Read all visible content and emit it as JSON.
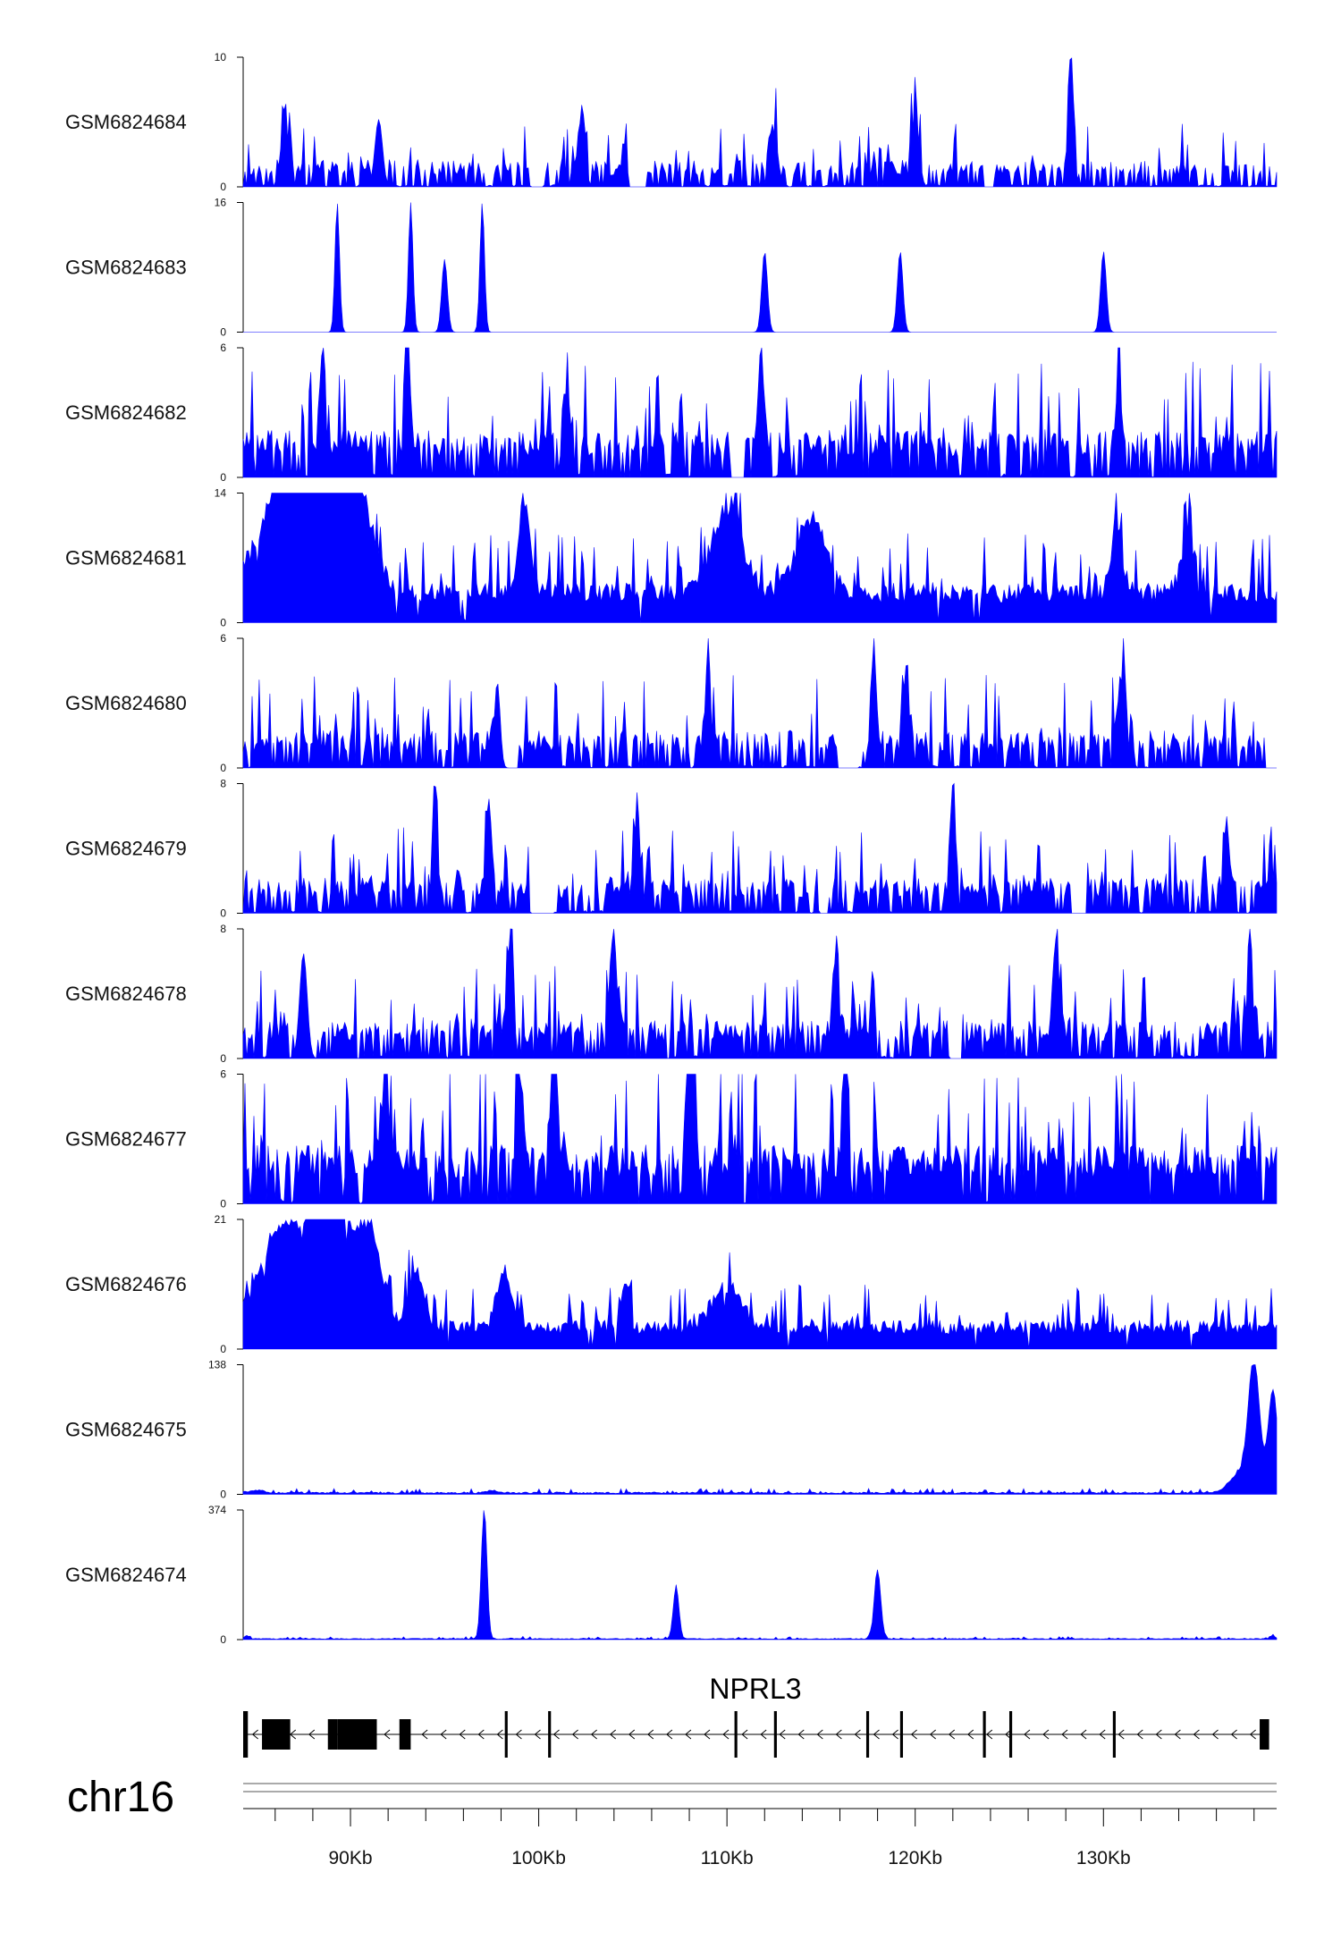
{
  "chart_data": {
    "type": "area",
    "chromosome": "chr16",
    "x_range_kb": [
      84.3,
      139.2
    ],
    "x_ticks": [
      {
        "value": 90,
        "label": "90Kb"
      },
      {
        "value": 100,
        "label": "100Kb"
      },
      {
        "value": 110,
        "label": "110Kb"
      },
      {
        "value": 120,
        "label": "120Kb"
      },
      {
        "value": 130,
        "label": "130Kb"
      }
    ],
    "color": "#0000ff",
    "tracks": [
      {
        "name": "GSM6824684",
        "ymax": 10,
        "ymin": 0,
        "baseline": 1.2,
        "amp": 0.5,
        "sparsity": 0.35,
        "gap": 0.22,
        "peaks": [
          [
            102.3,
            6.3,
            0.15
          ],
          [
            112.5,
            4.0,
            0.2
          ],
          [
            120.0,
            5.0,
            0.2
          ],
          [
            128.3,
            10.0,
            0.12
          ],
          [
            86.5,
            5.0,
            0.2
          ],
          [
            91.5,
            5.2,
            0.2
          ]
        ]
      },
      {
        "name": "GSM6824683",
        "ymax": 16,
        "ymin": 0,
        "baseline": 0,
        "amp": 0.9,
        "sparsity": 0.6,
        "gap": 0.55,
        "peaks": [
          [
            89.3,
            16.0,
            0.12
          ],
          [
            93.2,
            16.0,
            0.12
          ],
          [
            97.0,
            16.0,
            0.12
          ],
          [
            95.0,
            9.0,
            0.15
          ],
          [
            130.0,
            10.0,
            0.15
          ],
          [
            119.2,
            10.0,
            0.15
          ],
          [
            112.0,
            10.0,
            0.15
          ]
        ]
      },
      {
        "name": "GSM6824682",
        "ymax": 6,
        "ymin": 0,
        "baseline": 1.2,
        "amp": 0.55,
        "sparsity": 0.2,
        "gap": 0.05,
        "peaks": [
          [
            93.0,
            6.0,
            0.15
          ],
          [
            111.8,
            4.5,
            0.15
          ],
          [
            101.5,
            4.0,
            0.2
          ],
          [
            130.8,
            5.5,
            0.12
          ],
          [
            88.5,
            4.0,
            0.2
          ]
        ]
      },
      {
        "name": "GSM6824681",
        "ymax": 14,
        "ymin": 0,
        "baseline": 3.2,
        "amp": 0.35,
        "sparsity": 0.02,
        "gap": 0.02,
        "peaks": [
          [
            86.5,
            11.5,
            1.3
          ],
          [
            88.8,
            13.0,
            1.2
          ],
          [
            90.5,
            7.0,
            0.8
          ],
          [
            99.2,
            10.0,
            0.3
          ],
          [
            110.0,
            9.0,
            0.8
          ],
          [
            114.5,
            7.5,
            0.8
          ],
          [
            130.7,
            7.5,
            0.3
          ],
          [
            134.5,
            6.0,
            0.4
          ]
        ]
      },
      {
        "name": "GSM6824680",
        "ymax": 6,
        "ymin": 0,
        "baseline": 0.9,
        "amp": 0.6,
        "sparsity": 0.3,
        "gap": 0.1,
        "peaks": [
          [
            109.0,
            6.0,
            0.12
          ],
          [
            117.8,
            6.0,
            0.12
          ],
          [
            97.8,
            4.0,
            0.15
          ],
          [
            119.5,
            4.0,
            0.2
          ],
          [
            131.0,
            4.0,
            0.2
          ]
        ]
      },
      {
        "name": "GSM6824679",
        "ymax": 8,
        "ymin": 0,
        "baseline": 1.2,
        "amp": 0.55,
        "sparsity": 0.3,
        "gap": 0.1,
        "peaks": [
          [
            122.0,
            8.0,
            0.12
          ],
          [
            97.3,
            6.3,
            0.15
          ],
          [
            94.5,
            6.5,
            0.15
          ],
          [
            105.2,
            5.5,
            0.2
          ],
          [
            136.5,
            5.0,
            0.15
          ]
        ]
      },
      {
        "name": "GSM6824678",
        "ymax": 8,
        "ymin": 0,
        "baseline": 1.3,
        "amp": 0.55,
        "sparsity": 0.25,
        "gap": 0.08,
        "peaks": [
          [
            98.5,
            8.0,
            0.15
          ],
          [
            115.8,
            6.5,
            0.15
          ],
          [
            127.5,
            7.5,
            0.15
          ],
          [
            137.8,
            8.0,
            0.12
          ],
          [
            87.5,
            6.5,
            0.2
          ],
          [
            104.0,
            6.0,
            0.2
          ]
        ]
      },
      {
        "name": "GSM6824677",
        "ymax": 6,
        "ymin": 0,
        "baseline": 1.6,
        "amp": 0.5,
        "sparsity": 0.12,
        "gap": 0.04,
        "peaks": [
          [
            99.0,
            6.0,
            0.15
          ],
          [
            116.3,
            6.0,
            0.15
          ],
          [
            100.8,
            5.0,
            0.2
          ],
          [
            108.0,
            5.0,
            0.2
          ],
          [
            91.8,
            5.0,
            0.2
          ]
        ]
      },
      {
        "name": "GSM6824676",
        "ymax": 21,
        "ymin": 0,
        "baseline": 3.5,
        "amp": 0.35,
        "sparsity": 0.02,
        "gap": 0.02,
        "peaks": [
          [
            86.5,
            15.5,
            1.3
          ],
          [
            89.0,
            18.0,
            1.0
          ],
          [
            89.3,
            21.0,
            0.15
          ],
          [
            91.0,
            14.0,
            0.7
          ],
          [
            93.5,
            9.0,
            0.4
          ],
          [
            98.2,
            9.0,
            0.4
          ],
          [
            104.6,
            8.0,
            0.2
          ],
          [
            110.0,
            6.5,
            0.8
          ]
        ]
      },
      {
        "name": "GSM6824675",
        "ymax": 138,
        "ymin": 0,
        "baseline": 1.0,
        "amp": 0.8,
        "sparsity": 0.0,
        "gap": 0.0,
        "peaks": [
          [
            138.0,
            138.0,
            0.3
          ],
          [
            139.0,
            110.0,
            0.25
          ],
          [
            137.2,
            20.0,
            0.5
          ],
          [
            85.0,
            3.0,
            0.4
          ],
          [
            97.5,
            2.5,
            0.3
          ]
        ]
      },
      {
        "name": "GSM6824674",
        "ymax": 374,
        "ymin": 0,
        "baseline": 1.2,
        "amp": 1.0,
        "sparsity": 0.0,
        "gap": 0.0,
        "peaks": [
          [
            97.1,
            374.0,
            0.15
          ],
          [
            107.3,
            150.0,
            0.15
          ],
          [
            118.0,
            200.0,
            0.17
          ],
          [
            139.0,
            12.0,
            0.1
          ],
          [
            84.5,
            10.0,
            0.1
          ]
        ]
      }
    ],
    "gene": {
      "name": "NPRL3",
      "strand": "-",
      "start_kb": 84.3,
      "end_kb": 138.8,
      "exons_kb": [
        [
          84.3,
          84.55
        ],
        [
          85.3,
          86.8
        ],
        [
          88.8,
          89.3
        ],
        [
          89.3,
          91.4
        ],
        [
          92.6,
          93.2
        ],
        [
          98.2,
          98.35
        ],
        [
          100.5,
          100.65
        ],
        [
          110.4,
          110.55
        ],
        [
          112.5,
          112.65
        ],
        [
          117.4,
          117.55
        ],
        [
          119.2,
          119.35
        ],
        [
          123.6,
          123.75
        ],
        [
          125.0,
          125.15
        ],
        [
          130.5,
          130.65
        ],
        [
          138.3,
          138.8
        ]
      ]
    }
  }
}
